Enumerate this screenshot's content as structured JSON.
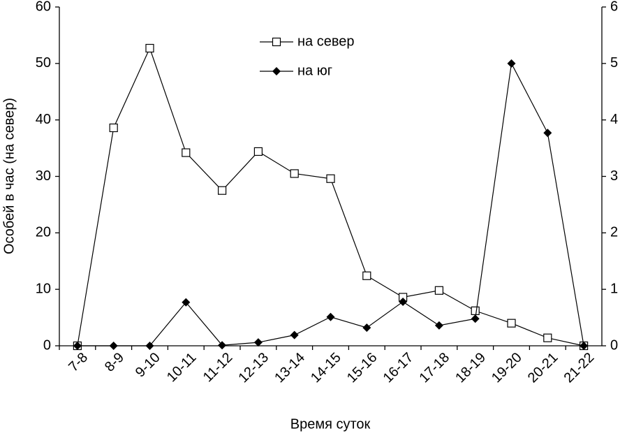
{
  "chart_data": {
    "type": "line",
    "x_label": "Время суток",
    "y_label": "Особей в час (на север)",
    "categories": [
      "7-8",
      "8-9",
      "9-10",
      "10-11",
      "11-12",
      "12-13",
      "13-14",
      "14-15",
      "15-16",
      "16-17",
      "17-18",
      "18-19",
      "19-20",
      "20-21",
      "21-22"
    ],
    "series": [
      {
        "name": "на север",
        "color": "#000000",
        "marker": "square",
        "values": [
          0,
          38.6,
          52.7,
          34.2,
          27.5,
          34.4,
          30.5,
          29.6,
          12.4,
          8.6,
          9.8,
          6.2,
          4.0,
          1.4,
          0
        ]
      },
      {
        "name": "на юг",
        "color": "#000000",
        "marker": "diamond",
        "axis": "y2",
        "values": [
          0,
          0,
          0,
          0.77,
          0.01,
          0.06,
          0.19,
          0.51,
          0.32,
          0.78,
          0.36,
          0.48,
          5.0,
          3.77,
          0
        ]
      }
    ],
    "ylim": [
      0,
      60
    ],
    "yticks": [
      0,
      10,
      20,
      30,
      40,
      50,
      60
    ],
    "y2lim": [
      0,
      6
    ],
    "y2ticks": [
      0,
      1,
      2,
      3,
      4,
      5,
      6
    ],
    "grid": false
  }
}
